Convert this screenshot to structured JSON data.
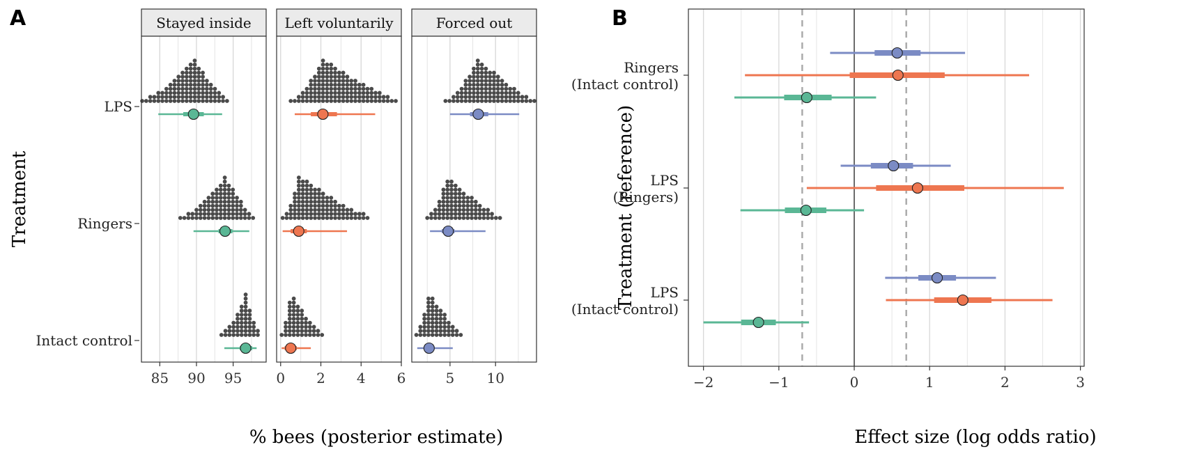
{
  "chart_data": [
    {
      "panel_label": "A",
      "type": "scatter",
      "xlabel": "% bees (posterior estimate)",
      "ylabel": "Treatment",
      "rows": [
        "LPS",
        "Ringers",
        "Intact control"
      ],
      "facets": [
        {
          "title": "Stayed inside",
          "xlim": [
            82.5,
            99.5
          ],
          "ticks": [
            85,
            90,
            95
          ],
          "tick_labels": [
            "85",
            "90",
            "95"
          ],
          "color": "#5ab795",
          "estimates": [
            {
              "row": "LPS",
              "median": 89.6,
              "inner": [
                88.2,
                91.0
              ],
              "outer": [
                84.8,
                93.5
              ],
              "dot_range": [
                82.6,
                94.5
              ]
            },
            {
              "row": "Ringers",
              "median": 93.9,
              "inner": [
                93.0,
                94.9
              ],
              "outer": [
                89.6,
                97.2
              ],
              "dot_range": [
                87.8,
                97.9
              ]
            },
            {
              "row": "Intact control",
              "median": 96.7,
              "inner": [
                95.9,
                97.6
              ],
              "outer": [
                93.8,
                98.2
              ],
              "dot_range": [
                93.4,
                98.6
              ]
            }
          ]
        },
        {
          "title": "Left voluntarily",
          "xlim": [
            -0.2,
            6.0
          ],
          "ticks": [
            0,
            2,
            4,
            6
          ],
          "tick_labels": [
            "0",
            "2",
            "4",
            "6"
          ],
          "color": "#ee7650",
          "estimates": [
            {
              "row": "LPS",
              "median": 2.1,
              "inner": [
                1.5,
                2.8
              ],
              "outer": [
                0.7,
                4.7
              ],
              "dot_range": [
                0.5,
                5.9
              ]
            },
            {
              "row": "Ringers",
              "median": 0.9,
              "inner": [
                0.5,
                1.3
              ],
              "outer": [
                0.1,
                3.3
              ],
              "dot_range": [
                0.1,
                4.5
              ]
            },
            {
              "row": "Intact control",
              "median": 0.5,
              "inner": [
                0.2,
                0.8
              ],
              "outer": [
                0.05,
                1.5
              ],
              "dot_range": [
                0.05,
                2.1
              ]
            }
          ]
        },
        {
          "title": "Forced out",
          "xlim": [
            0.8,
            14.5
          ],
          "ticks": [
            5,
            10
          ],
          "tick_labels": [
            "5",
            "10"
          ],
          "color": "#7b8bc4",
          "estimates": [
            {
              "row": "LPS",
              "median": 8.1,
              "inner": [
                7.2,
                9.2
              ],
              "outer": [
                5.0,
                12.6
              ],
              "dot_range": [
                4.5,
                14.3
              ]
            },
            {
              "row": "Ringers",
              "median": 4.8,
              "inner": [
                4.1,
                5.5
              ],
              "outer": [
                2.8,
                8.9
              ],
              "dot_range": [
                2.5,
                10.6
              ]
            },
            {
              "row": "Intact control",
              "median": 2.7,
              "inner": [
                2.2,
                3.3
              ],
              "outer": [
                1.4,
                5.3
              ],
              "dot_range": [
                1.3,
                6.5
              ]
            }
          ]
        }
      ]
    },
    {
      "panel_label": "B",
      "type": "scatter",
      "xlabel": "Effect size (log odds ratio)",
      "ylabel": "Treatment (reference)",
      "xlim": [
        -2.2,
        3.05
      ],
      "ticks": [
        -2,
        -1,
        0,
        1,
        2,
        3
      ],
      "tick_labels": [
        "−2",
        "−1",
        "0",
        "1",
        "2",
        "3"
      ],
      "reference_lines": {
        "dashed": [
          -0.69,
          0.69
        ],
        "solid": [
          0
        ]
      },
      "groups": [
        {
          "line1": "Ringers",
          "line2": "(Intact control)",
          "series": [
            {
              "outcome": "Forced out",
              "color": "#7b8bc4",
              "median": 0.57,
              "inner": [
                0.27,
                0.88
              ],
              "outer": [
                -0.32,
                1.47
              ]
            },
            {
              "outcome": "Left voluntarily",
              "color": "#ee7650",
              "median": 0.58,
              "inner": [
                -0.06,
                1.2
              ],
              "outer": [
                -1.45,
                2.32
              ]
            },
            {
              "outcome": "Stayed inside",
              "color": "#5ab795",
              "median": -0.63,
              "inner": [
                -0.93,
                -0.3
              ],
              "outer": [
                -1.59,
                0.29
              ]
            }
          ]
        },
        {
          "line1": "LPS",
          "line2": "(Ringers)",
          "series": [
            {
              "outcome": "Forced out",
              "color": "#7b8bc4",
              "median": 0.52,
              "inner": [
                0.22,
                0.78
              ],
              "outer": [
                -0.18,
                1.28
              ]
            },
            {
              "outcome": "Left voluntarily",
              "color": "#ee7650",
              "median": 0.84,
              "inner": [
                0.29,
                1.46
              ],
              "outer": [
                -0.63,
                2.78
              ]
            },
            {
              "outcome": "Stayed inside",
              "color": "#5ab795",
              "median": -0.64,
              "inner": [
                -0.92,
                -0.37
              ],
              "outer": [
                -1.51,
                0.13
              ]
            }
          ]
        },
        {
          "line1": "LPS",
          "line2": "(Intact control)",
          "series": [
            {
              "outcome": "Forced out",
              "color": "#7b8bc4",
              "median": 1.1,
              "inner": [
                0.85,
                1.35
              ],
              "outer": [
                0.41,
                1.88
              ]
            },
            {
              "outcome": "Left voluntarily",
              "color": "#ee7650",
              "median": 1.44,
              "inner": [
                1.06,
                1.82
              ],
              "outer": [
                0.42,
                2.63
              ]
            },
            {
              "outcome": "Stayed inside",
              "color": "#5ab795",
              "median": -1.27,
              "inner": [
                -1.5,
                -1.04
              ],
              "outer": [
                -2.0,
                -0.6
              ]
            }
          ]
        }
      ]
    }
  ]
}
